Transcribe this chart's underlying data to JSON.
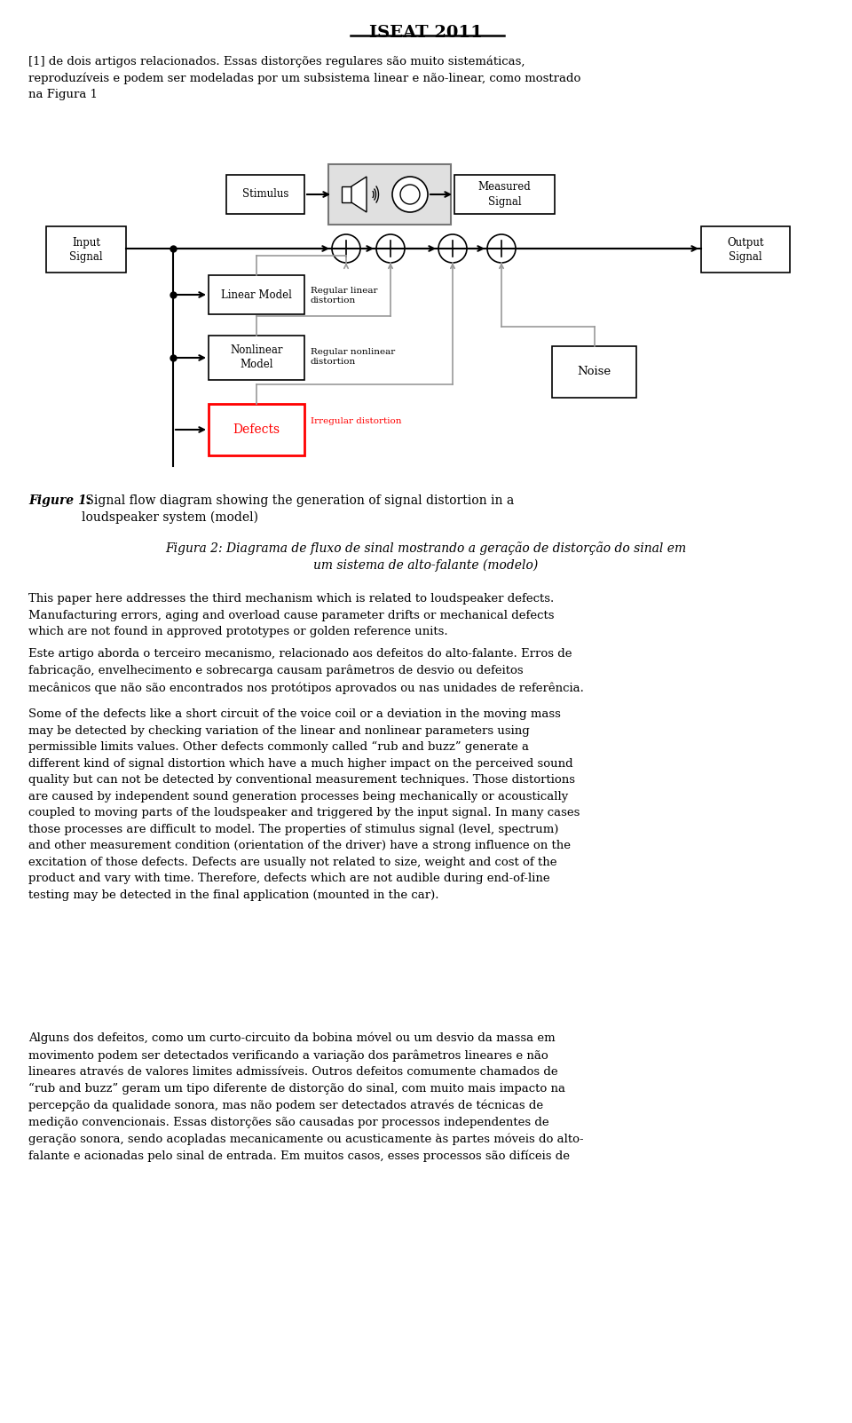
{
  "title": "ISEAT 2011",
  "bg_color": "#ffffff",
  "text_color": "#000000",
  "paragraph1": "[1] de dois artigos relacionados. Essas distorções regulares são muito sistemáticas,\nreproduzíveis e podem ser modeladas por um subsistema linear e não-linear, como mostrado\nna Figura 1",
  "fig_caption1_italic": "Figure 1:",
  "fig_caption1_normal": " Signal flow diagram showing the generation of signal distortion in a\nloudspeaker system (model)",
  "fig_caption2_italic": "Figura 2:",
  "fig_caption2_normal": " Diagrama de fluxo de sinal mostrando a geração de distorção do sinal em\num sistema de alto-falante (modelo)",
  "para2": "This paper here addresses the third mechanism which is related to loudspeaker defects.\nManufacturing errors, aging and overload cause parameter drifts or mechanical defects\nwhich are not found in approved prototypes or golden reference units.",
  "para3": "Este artigo aborda o terceiro mecanismo, relacionado aos defeitos do alto-falante. Erros de\nfabricação, envelhecimento e sobrecarga causam parâmetros de desvio ou defeitos\nmecânicos que não são encontrados nos protótipos aprovados ou nas unidades de referência.",
  "para4": "Some of the defects like a short circuit of the voice coil or a deviation in the moving mass\nmay be detected by checking variation of the linear and nonlinear parameters using\npermissible limits values. Other defects commonly called “rub and buzz” generate a\ndifferent kind of signal distortion which have a much higher impact on the perceived sound\nquality but can not be detected by conventional measurement techniques. Those distortions\nare caused by independent sound generation processes being mechanically or acoustically\ncoupled to moving parts of the loudspeaker and triggered by the input signal. In many cases\nthose processes are difficult to model. The properties of stimulus signal (level, spectrum)\nand other measurement condition (orientation of the driver) have a strong influence on the\nexcitation of those defects. Defects are usually not related to size, weight and cost of the\nproduct and vary with time. Therefore, defects which are not audible during end-of-line\ntesting may be detected in the final application (mounted in the car).",
  "para5": "Alguns dos defeitos, como um curto-circuito da bobina móvel ou um desvio da massa em\nmovimento podem ser detectados verificando a variação dos parâmetros lineares e não\nlineares através de valores limites admissíveis. Outros defeitos comumente chamados de\n“rub and buzz” geram um tipo diferente de distorção do sinal, com muito mais impacto na\npercepção da qualidade sonora, mas não podem ser detectados através de técnicas de\nmedição convencionais. Essas distorções são causadas por processos independentes de\ngeração sonora, sendo acopladas mecanicamente ou acusticamente às partes móveis do alto-\nfalante e acionadas pelo sinal de entrada. Em muitos casos, esses processos são difíceis de"
}
